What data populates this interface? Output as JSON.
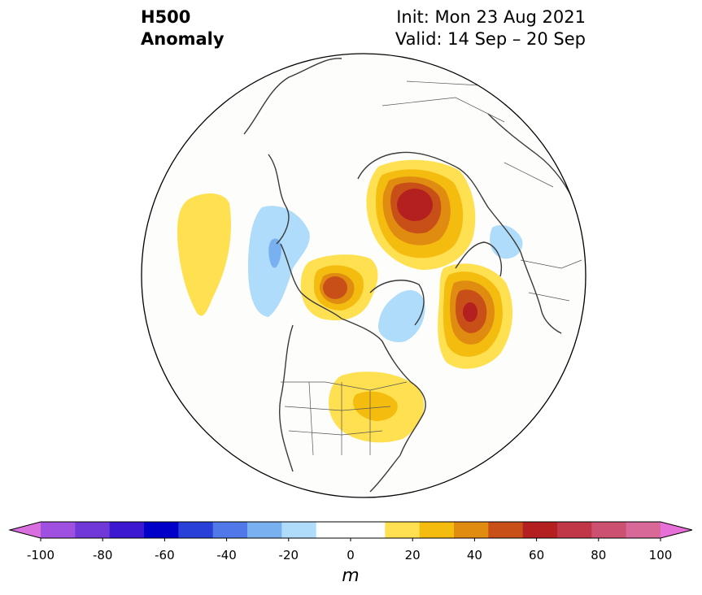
{
  "title": {
    "left_line1": "H500",
    "left_line2": "Anomaly",
    "init": "Init: Mon 23 Aug 2021",
    "valid": "Valid: 14 Sep – 20 Sep"
  },
  "colorbar": {
    "unit": "m",
    "ticks": [
      "-100",
      "-80",
      "-60",
      "-40",
      "-20",
      "0",
      "20",
      "40",
      "60",
      "80",
      "100"
    ],
    "colors": [
      "#d86ee0",
      "#a050e0",
      "#7038d8",
      "#3c18d0",
      "#0000c8",
      "#2840d8",
      "#5078e8",
      "#78b0f0",
      "#aedcfa",
      "#ffffff",
      "#ffffff",
      "#ffe050",
      "#f5bc10",
      "#e08c10",
      "#c85018",
      "#b42020",
      "#c03848",
      "#cc5070",
      "#d86898",
      "#e670d8"
    ]
  },
  "map": {
    "projection": "north-polar-stereographic",
    "anomalies": [
      {
        "region": "Eurasian Arctic / Kara Sea",
        "sign": "positive",
        "max_m": 60
      },
      {
        "region": "Eastern Europe / Scandinavia",
        "sign": "positive",
        "max_m": 60
      },
      {
        "region": "Alaska / Bering Sea",
        "sign": "positive",
        "max_m": 40
      },
      {
        "region": "Great Lakes / Eastern US",
        "sign": "positive",
        "max_m": 30
      },
      {
        "region": "North Pacific",
        "sign": "positive",
        "max_m": 20
      },
      {
        "region": "East Siberia / Kamchatka",
        "sign": "negative",
        "min_m": -30
      },
      {
        "region": "Greenland / Baffin",
        "sign": "negative",
        "min_m": -20
      },
      {
        "region": "Central Asia",
        "sign": "negative",
        "min_m": -20
      }
    ]
  }
}
